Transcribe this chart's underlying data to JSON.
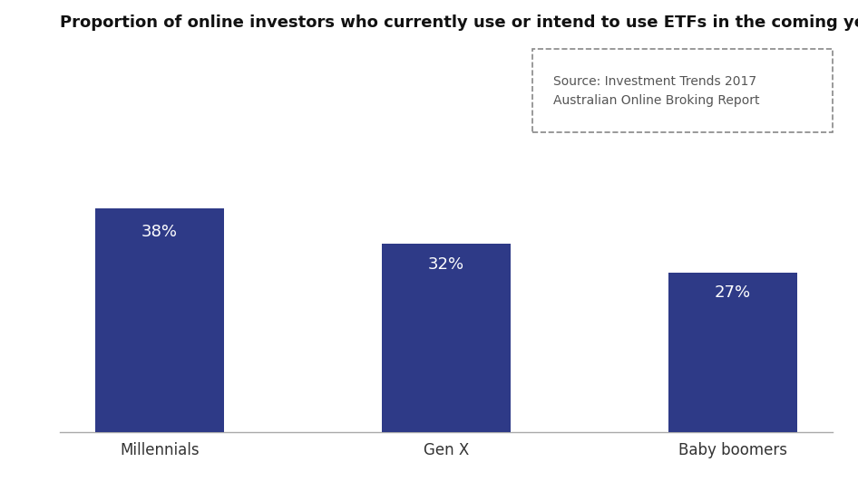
{
  "title": "Proportion of online investors who currently use or intend to use ETFs in the coming year",
  "categories": [
    "Millennials",
    "Gen X",
    "Baby boomers"
  ],
  "values": [
    38,
    32,
    27
  ],
  "labels": [
    "38%",
    "32%",
    "27%"
  ],
  "bar_color": "#2E3A87",
  "background_color": "#ffffff",
  "ylim": [
    0,
    50
  ],
  "bar_width": 0.45,
  "source_text": "Source: Investment Trends 2017\nAustralian Online Broking Report",
  "label_color": "#ffffff",
  "label_fontsize": 13,
  "title_fontsize": 13,
  "xtick_fontsize": 12,
  "axis_line_color": "#aaaaaa",
  "source_fontsize": 10,
  "source_text_color": "#555555",
  "source_border_color": "#888888"
}
